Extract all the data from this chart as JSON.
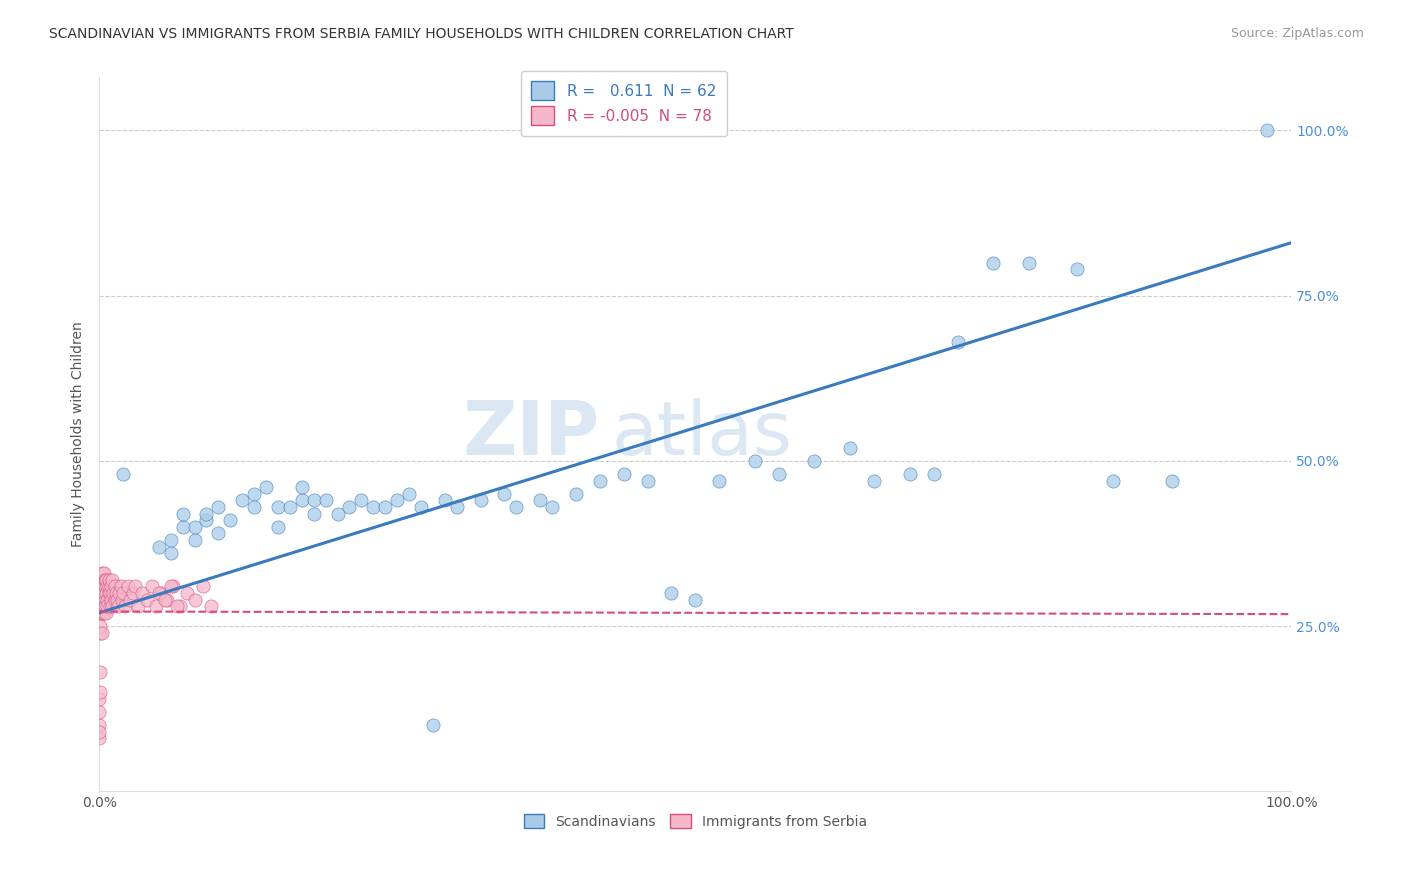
{
  "title": "SCANDINAVIAN VS IMMIGRANTS FROM SERBIA FAMILY HOUSEHOLDS WITH CHILDREN CORRELATION CHART",
  "source": "Source: ZipAtlas.com",
  "ylabel": "Family Households with Children",
  "r_scandinavian": 0.611,
  "n_scandinavian": 62,
  "r_serbia": -0.005,
  "n_serbia": 78,
  "color_scandinavian": "#a8cce8",
  "color_serbia": "#f5b8cb",
  "trend_color_scandinavian": "#3a7abf",
  "trend_color_serbia": "#d44c7a",
  "background_color": "#ffffff",
  "grid_color": "#cccccc",
  "watermark_zip": "ZIP",
  "watermark_atlas": "atlas",
  "xlim": [
    0.0,
    1.0
  ],
  "ylim": [
    0.0,
    1.08
  ],
  "y_ticks_right": [
    0.25,
    0.5,
    0.75,
    1.0
  ],
  "y_tick_labels_right": [
    "25.0%",
    "50.0%",
    "75.0%",
    "100.0%"
  ],
  "scandinavian_x": [
    0.02,
    0.05,
    0.06,
    0.06,
    0.07,
    0.07,
    0.08,
    0.08,
    0.09,
    0.09,
    0.1,
    0.1,
    0.11,
    0.12,
    0.13,
    0.13,
    0.14,
    0.15,
    0.15,
    0.16,
    0.17,
    0.17,
    0.18,
    0.18,
    0.19,
    0.2,
    0.21,
    0.22,
    0.23,
    0.24,
    0.25,
    0.26,
    0.27,
    0.28,
    0.29,
    0.3,
    0.32,
    0.34,
    0.35,
    0.37,
    0.38,
    0.4,
    0.42,
    0.44,
    0.46,
    0.48,
    0.5,
    0.52,
    0.55,
    0.57,
    0.6,
    0.63,
    0.65,
    0.68,
    0.7,
    0.72,
    0.75,
    0.78,
    0.82,
    0.85,
    0.9,
    0.98
  ],
  "scandinavian_y": [
    0.48,
    0.37,
    0.36,
    0.38,
    0.4,
    0.42,
    0.4,
    0.38,
    0.41,
    0.42,
    0.43,
    0.39,
    0.41,
    0.44,
    0.45,
    0.43,
    0.46,
    0.43,
    0.4,
    0.43,
    0.44,
    0.46,
    0.42,
    0.44,
    0.44,
    0.42,
    0.43,
    0.44,
    0.43,
    0.43,
    0.44,
    0.45,
    0.43,
    0.1,
    0.44,
    0.43,
    0.44,
    0.45,
    0.43,
    0.44,
    0.43,
    0.45,
    0.47,
    0.48,
    0.47,
    0.3,
    0.29,
    0.47,
    0.5,
    0.48,
    0.5,
    0.52,
    0.47,
    0.48,
    0.48,
    0.68,
    0.8,
    0.8,
    0.79,
    0.47,
    0.47,
    1.0
  ],
  "serbia_x": [
    0.0,
    0.0,
    0.0,
    0.0,
    0.0,
    0.001,
    0.001,
    0.001,
    0.001,
    0.001,
    0.001,
    0.001,
    0.002,
    0.002,
    0.002,
    0.002,
    0.002,
    0.002,
    0.003,
    0.003,
    0.003,
    0.003,
    0.003,
    0.004,
    0.004,
    0.004,
    0.004,
    0.005,
    0.005,
    0.005,
    0.005,
    0.006,
    0.006,
    0.006,
    0.007,
    0.007,
    0.007,
    0.008,
    0.008,
    0.008,
    0.009,
    0.009,
    0.01,
    0.01,
    0.011,
    0.011,
    0.012,
    0.013,
    0.013,
    0.014,
    0.015,
    0.016,
    0.017,
    0.018,
    0.019,
    0.02,
    0.022,
    0.024,
    0.026,
    0.028,
    0.03,
    0.033,
    0.036,
    0.04,
    0.044,
    0.048,
    0.052,
    0.057,
    0.062,
    0.068,
    0.074,
    0.08,
    0.087,
    0.094,
    0.05,
    0.055,
    0.06,
    0.065
  ],
  "serbia_y": [
    0.08,
    0.1,
    0.12,
    0.14,
    0.09,
    0.15,
    0.18,
    0.24,
    0.27,
    0.28,
    0.3,
    0.25,
    0.31,
    0.27,
    0.33,
    0.24,
    0.29,
    0.28,
    0.3,
    0.32,
    0.27,
    0.29,
    0.31,
    0.33,
    0.28,
    0.3,
    0.27,
    0.31,
    0.29,
    0.32,
    0.28,
    0.3,
    0.32,
    0.27,
    0.31,
    0.29,
    0.28,
    0.3,
    0.31,
    0.32,
    0.28,
    0.3,
    0.31,
    0.29,
    0.32,
    0.28,
    0.3,
    0.29,
    0.31,
    0.3,
    0.29,
    0.28,
    0.3,
    0.31,
    0.29,
    0.3,
    0.28,
    0.31,
    0.29,
    0.3,
    0.31,
    0.28,
    0.3,
    0.29,
    0.31,
    0.28,
    0.3,
    0.29,
    0.31,
    0.28,
    0.3,
    0.29,
    0.31,
    0.28,
    0.3,
    0.29,
    0.31,
    0.28
  ],
  "trend_scand_x0": 0.0,
  "trend_scand_y0": 0.27,
  "trend_scand_x1": 1.0,
  "trend_scand_y1": 0.83,
  "trend_serbia_x0": 0.0,
  "trend_serbia_y0": 0.272,
  "trend_serbia_x1": 1.0,
  "trend_serbia_y1": 0.268
}
